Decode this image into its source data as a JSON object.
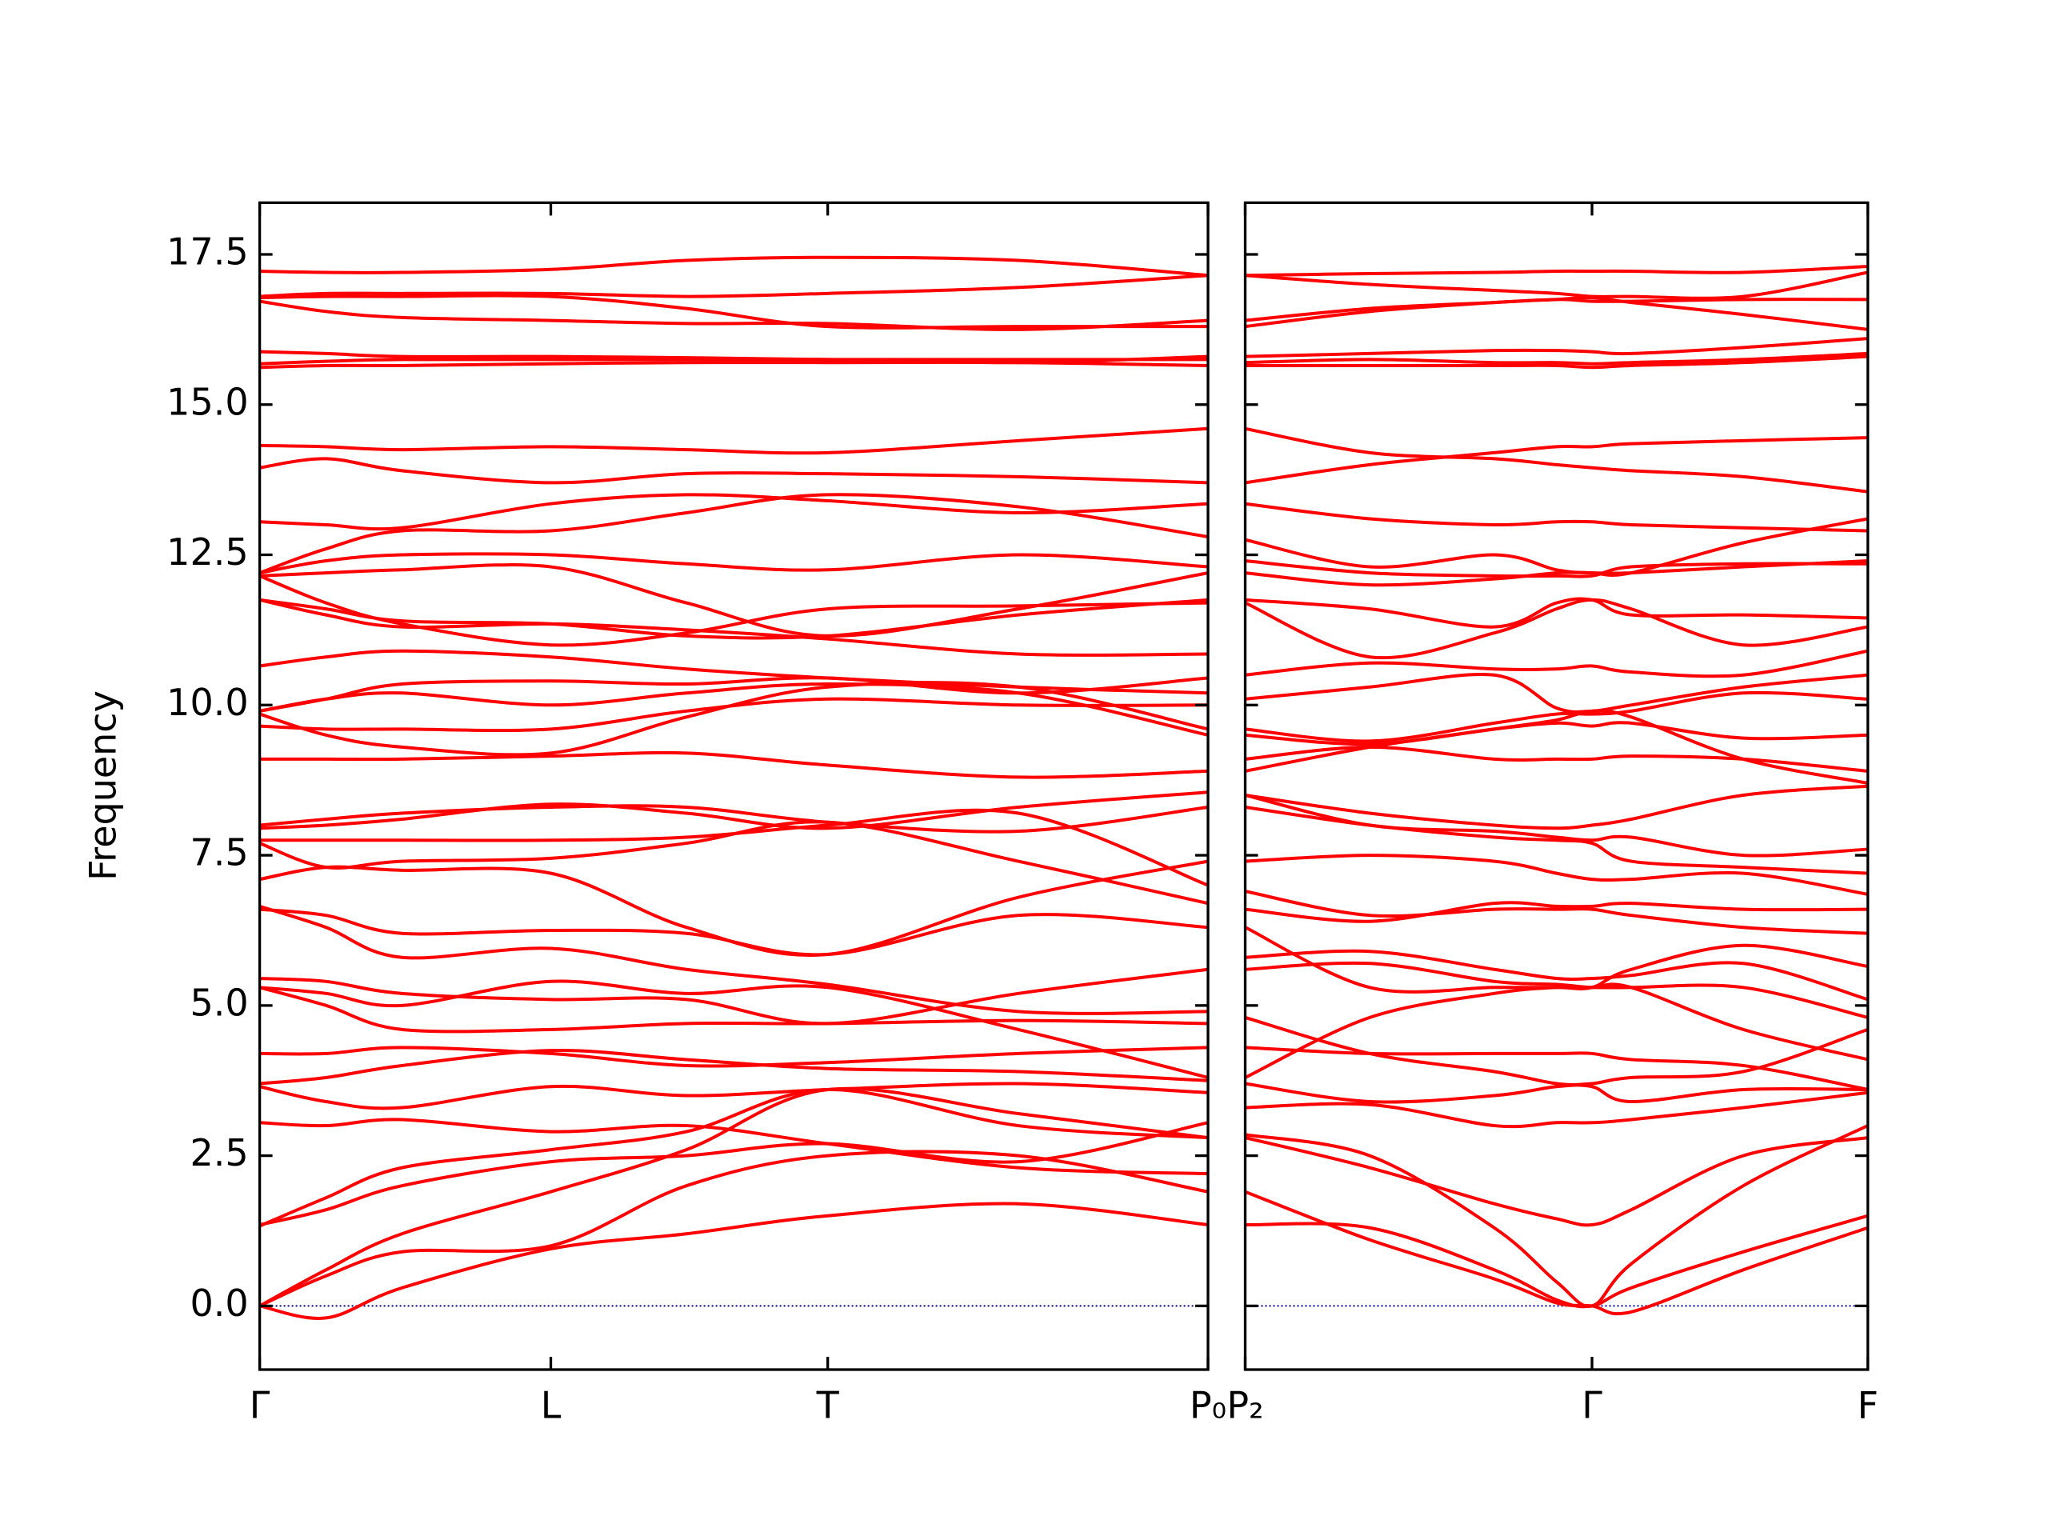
{
  "chart_data": [
    {
      "type": "line",
      "ylabel": "Frequency",
      "color": "#ff0000",
      "x": [
        0,
        0.07,
        0.15,
        0.307,
        0.45,
        0.599,
        0.8,
        1
      ],
      "xlim": [
        0,
        1
      ],
      "xticks": [
        {
          "value": 0,
          "label": "Γ"
        },
        {
          "value": 0.307,
          "label": "L"
        },
        {
          "value": 0.599,
          "label": "T"
        },
        {
          "value": 1,
          "label": "P₀"
        }
      ],
      "ylim": [
        -1.06,
        18.36
      ],
      "yticks": [
        {
          "value": 0,
          "label": "0.0"
        },
        2.5,
        {
          "value": 5,
          "label": "5.0"
        },
        7.5,
        {
          "value": 10,
          "label": "10.0"
        },
        12.5,
        {
          "value": 15,
          "label": "15.0"
        },
        17.5
      ],
      "grid": false,
      "hline": {
        "value": 0,
        "color": "#00008b",
        "style": "dotted"
      },
      "series": [
        {
          "values": [
            0,
            -0.2,
            0.3,
            0.95,
            1.2,
            1.5,
            1.7,
            1.35
          ]
        },
        {
          "values": [
            0,
            0.5,
            0.9,
            1.0,
            2.0,
            2.5,
            2.5,
            1.9
          ]
        },
        {
          "values": [
            0,
            0.6,
            1.2,
            1.9,
            2.6,
            3.6,
            3.2,
            2.8
          ]
        },
        {
          "values": [
            1.35,
            1.6,
            2.0,
            2.4,
            2.5,
            2.7,
            2.4,
            3.05
          ]
        },
        {
          "values": [
            1.33,
            1.8,
            2.3,
            2.6,
            2.9,
            3.6,
            3.0,
            2.8
          ]
        },
        {
          "values": [
            3.05,
            3.0,
            3.1,
            2.9,
            3.0,
            2.7,
            2.3,
            2.2
          ]
        },
        {
          "values": [
            3.65,
            3.4,
            3.3,
            3.65,
            3.5,
            3.6,
            3.7,
            3.55
          ]
        },
        {
          "values": [
            3.7,
            3.8,
            4.0,
            4.25,
            4.1,
            3.95,
            3.9,
            3.75
          ]
        },
        {
          "values": [
            4.2,
            4.2,
            4.3,
            4.2,
            4.0,
            4.05,
            4.2,
            4.3
          ]
        },
        {
          "values": [
            5.3,
            5.0,
            4.6,
            4.6,
            4.7,
            4.7,
            4.75,
            4.7
          ]
        },
        {
          "values": [
            5.45,
            5.4,
            5.2,
            5.1,
            5.1,
            4.7,
            5.2,
            5.6
          ]
        },
        {
          "values": [
            5.3,
            5.2,
            5.0,
            5.4,
            5.2,
            5.3,
            4.6,
            3.8
          ]
        },
        {
          "values": [
            6.65,
            6.3,
            5.8,
            5.95,
            5.6,
            5.35,
            4.9,
            4.9
          ]
        },
        {
          "values": [
            6.6,
            6.5,
            6.2,
            6.25,
            6.2,
            5.85,
            6.5,
            6.3
          ]
        },
        {
          "values": [
            7.1,
            7.3,
            7.25,
            7.2,
            6.3,
            5.85,
            6.8,
            7.4
          ]
        },
        {
          "values": [
            7.7,
            7.3,
            7.4,
            7.45,
            7.7,
            8.05,
            7.4,
            6.7
          ]
        },
        {
          "values": [
            7.75,
            7.75,
            7.75,
            7.75,
            7.8,
            8.0,
            8.2,
            7.0
          ]
        },
        {
          "values": [
            8.0,
            8.1,
            8.2,
            8.3,
            8.3,
            8.05,
            7.9,
            8.3
          ]
        },
        {
          "values": [
            7.95,
            8.0,
            8.1,
            8.35,
            8.2,
            7.95,
            8.3,
            8.55
          ]
        },
        {
          "values": [
            9.1,
            9.1,
            9.1,
            9.15,
            9.2,
            9.0,
            8.8,
            8.9
          ]
        },
        {
          "values": [
            9.65,
            9.6,
            9.6,
            9.6,
            9.9,
            10.1,
            10.0,
            10.0
          ]
        },
        {
          "values": [
            9.85,
            9.5,
            9.3,
            9.2,
            9.8,
            10.3,
            10.3,
            9.6
          ]
        },
        {
          "values": [
            9.9,
            10.1,
            10.2,
            10.0,
            10.2,
            10.35,
            10.2,
            9.5
          ]
        },
        {
          "values": [
            9.9,
            10.1,
            10.35,
            10.4,
            10.35,
            10.45,
            10.2,
            10.45
          ]
        },
        {
          "values": [
            10.65,
            10.8,
            10.9,
            10.8,
            10.6,
            10.45,
            10.3,
            10.2
          ]
        },
        {
          "values": [
            11.75,
            11.5,
            11.3,
            11.35,
            11.25,
            11.1,
            10.85,
            10.85
          ]
        },
        {
          "values": [
            11.75,
            11.6,
            11.4,
            11.35,
            11.15,
            11.15,
            11.5,
            11.75
          ]
        },
        {
          "values": [
            12.15,
            11.7,
            11.35,
            11.0,
            11.2,
            11.6,
            11.65,
            11.7
          ]
        },
        {
          "values": [
            12.15,
            12.2,
            12.25,
            12.3,
            11.7,
            11.15,
            11.6,
            12.2
          ]
        },
        {
          "values": [
            12.2,
            12.4,
            12.5,
            12.5,
            12.35,
            12.25,
            12.5,
            12.3
          ]
        },
        {
          "values": [
            12.2,
            12.6,
            12.9,
            12.9,
            13.2,
            13.5,
            13.3,
            12.8
          ]
        },
        {
          "values": [
            13.05,
            13.0,
            12.95,
            13.35,
            13.5,
            13.4,
            13.2,
            13.35
          ]
        },
        {
          "values": [
            13.95,
            14.1,
            13.9,
            13.7,
            13.85,
            13.85,
            13.8,
            13.7
          ]
        },
        {
          "values": [
            14.32,
            14.3,
            14.25,
            14.3,
            14.25,
            14.2,
            14.4,
            14.6
          ]
        },
        {
          "values": [
            15.62,
            15.65,
            15.65,
            15.68,
            15.7,
            15.7,
            15.7,
            15.65
          ]
        },
        {
          "values": [
            15.68,
            15.72,
            15.75,
            15.75,
            15.75,
            15.75,
            15.75,
            15.75
          ]
        },
        {
          "values": [
            15.88,
            15.85,
            15.8,
            15.8,
            15.78,
            15.75,
            15.7,
            15.8
          ]
        },
        {
          "values": [
            16.72,
            16.55,
            16.45,
            16.4,
            16.35,
            16.35,
            16.25,
            16.4
          ]
        },
        {
          "values": [
            16.78,
            16.8,
            16.8,
            16.8,
            16.6,
            16.3,
            16.3,
            16.3
          ]
        },
        {
          "values": [
            16.8,
            16.85,
            16.85,
            16.85,
            16.8,
            16.85,
            16.95,
            17.15
          ]
        },
        {
          "values": [
            17.22,
            17.2,
            17.2,
            17.25,
            17.4,
            17.45,
            17.4,
            17.15
          ]
        }
      ]
    },
    {
      "type": "line",
      "color": "#ff0000",
      "sharey": true,
      "x": [
        0,
        0.2,
        0.4,
        0.5,
        0.557,
        0.62,
        0.8,
        1
      ],
      "xlim": [
        0,
        1
      ],
      "xticks": [
        {
          "value": 0,
          "label": "P₂"
        },
        {
          "value": 0.557,
          "label": "Γ"
        },
        {
          "value": 1,
          "label": "F"
        }
      ],
      "grid": false,
      "hline": {
        "value": 0,
        "color": "#00008b",
        "style": "dotted"
      },
      "series": [
        {
          "values": [
            1.9,
            1.1,
            0.45,
            0.05,
            0,
            -0.1,
            0.6,
            1.3
          ]
        },
        {
          "values": [
            1.35,
            1.3,
            0.6,
            0.1,
            0,
            0.3,
            0.9,
            1.5
          ]
        },
        {
          "values": [
            2.8,
            2.3,
            1.7,
            1.45,
            1.35,
            1.6,
            2.5,
            2.8
          ]
        },
        {
          "values": [
            2.85,
            2.5,
            1.3,
            0.4,
            0,
            0.7,
            2.0,
            3.0
          ]
        },
        {
          "values": [
            3.3,
            3.35,
            3.0,
            3.05,
            3.05,
            3.1,
            3.3,
            3.55
          ]
        },
        {
          "values": [
            3.7,
            3.4,
            3.5,
            3.65,
            3.65,
            3.4,
            3.6,
            3.6
          ]
        },
        {
          "values": [
            3.8,
            4.8,
            5.2,
            5.3,
            5.3,
            5.3,
            4.6,
            4.1
          ]
        },
        {
          "values": [
            4.8,
            4.2,
            3.9,
            3.7,
            3.7,
            3.8,
            3.9,
            4.6
          ]
        },
        {
          "values": [
            4.3,
            4.2,
            4.2,
            4.2,
            4.2,
            4.1,
            4.0,
            3.6
          ]
        },
        {
          "values": [
            5.6,
            5.7,
            5.4,
            5.35,
            5.3,
            5.3,
            5.3,
            4.8
          ]
        },
        {
          "values": [
            5.8,
            5.9,
            5.6,
            5.45,
            5.45,
            5.5,
            5.7,
            5.1
          ]
        },
        {
          "values": [
            6.3,
            5.3,
            5.3,
            5.3,
            5.3,
            5.6,
            6.0,
            5.65
          ]
        },
        {
          "values": [
            6.9,
            6.5,
            6.6,
            6.6,
            6.6,
            6.5,
            6.3,
            6.2
          ]
        },
        {
          "values": [
            6.6,
            6.4,
            6.7,
            6.65,
            6.65,
            6.7,
            6.6,
            6.6
          ]
        },
        {
          "values": [
            7.4,
            7.5,
            7.4,
            7.2,
            7.1,
            7.1,
            7.2,
            6.85
          ]
        },
        {
          "values": [
            8.3,
            8.0,
            7.8,
            7.75,
            7.7,
            7.4,
            7.3,
            7.2
          ]
        },
        {
          "values": [
            8.5,
            8.0,
            7.9,
            7.8,
            7.75,
            7.8,
            7.5,
            7.6
          ]
        },
        {
          "values": [
            8.5,
            8.2,
            8.0,
            7.95,
            8.0,
            8.1,
            8.5,
            8.65
          ]
        },
        {
          "values": [
            8.9,
            9.3,
            9.6,
            9.75,
            9.9,
            9.8,
            9.1,
            8.7
          ]
        },
        {
          "values": [
            9.1,
            9.3,
            9.1,
            9.1,
            9.1,
            9.15,
            9.1,
            8.9
          ]
        },
        {
          "values": [
            9.5,
            9.35,
            9.6,
            9.7,
            9.65,
            9.7,
            9.45,
            9.5
          ]
        },
        {
          "values": [
            9.6,
            9.4,
            9.7,
            9.85,
            9.85,
            9.9,
            10.2,
            10.1
          ]
        },
        {
          "values": [
            10.1,
            10.3,
            10.5,
            9.95,
            9.9,
            10.0,
            10.3,
            10.5
          ]
        },
        {
          "values": [
            10.5,
            10.7,
            10.6,
            10.6,
            10.65,
            10.55,
            10.5,
            10.9
          ]
        },
        {
          "values": [
            11.7,
            10.8,
            11.2,
            11.6,
            11.75,
            11.6,
            11.0,
            11.3
          ]
        },
        {
          "values": [
            11.75,
            11.6,
            11.3,
            11.7,
            11.75,
            11.5,
            11.5,
            11.45
          ]
        },
        {
          "values": [
            12.2,
            12.0,
            12.1,
            12.2,
            12.2,
            12.2,
            12.3,
            12.4
          ]
        },
        {
          "values": [
            12.4,
            12.2,
            12.15,
            12.15,
            12.15,
            12.3,
            12.35,
            12.35
          ]
        },
        {
          "values": [
            12.75,
            12.3,
            12.5,
            12.25,
            12.2,
            12.2,
            12.7,
            13.1
          ]
        },
        {
          "values": [
            13.35,
            13.1,
            13.0,
            13.05,
            13.05,
            13.0,
            12.95,
            12.9
          ]
        },
        {
          "values": [
            13.7,
            14.0,
            14.2,
            14.3,
            14.3,
            14.35,
            14.4,
            14.45
          ]
        },
        {
          "values": [
            14.6,
            14.2,
            14.1,
            14.0,
            13.95,
            13.9,
            13.8,
            13.55
          ]
        },
        {
          "values": [
            15.65,
            15.65,
            15.65,
            15.65,
            15.62,
            15.65,
            15.7,
            15.8
          ]
        },
        {
          "values": [
            15.7,
            15.75,
            15.7,
            15.7,
            15.68,
            15.7,
            15.75,
            15.85
          ]
        },
        {
          "values": [
            15.8,
            15.85,
            15.9,
            15.9,
            15.88,
            15.85,
            15.95,
            16.1
          ]
        },
        {
          "values": [
            16.4,
            16.6,
            16.7,
            16.75,
            16.72,
            16.72,
            16.75,
            16.75
          ]
        },
        {
          "values": [
            16.3,
            16.55,
            16.7,
            16.75,
            16.78,
            16.7,
            16.5,
            16.25
          ]
        },
        {
          "values": [
            17.15,
            17.18,
            17.2,
            17.22,
            17.22,
            17.22,
            17.2,
            17.3
          ]
        },
        {
          "values": [
            17.15,
            17.0,
            16.9,
            16.85,
            16.8,
            16.8,
            16.8,
            17.2
          ]
        }
      ]
    }
  ]
}
